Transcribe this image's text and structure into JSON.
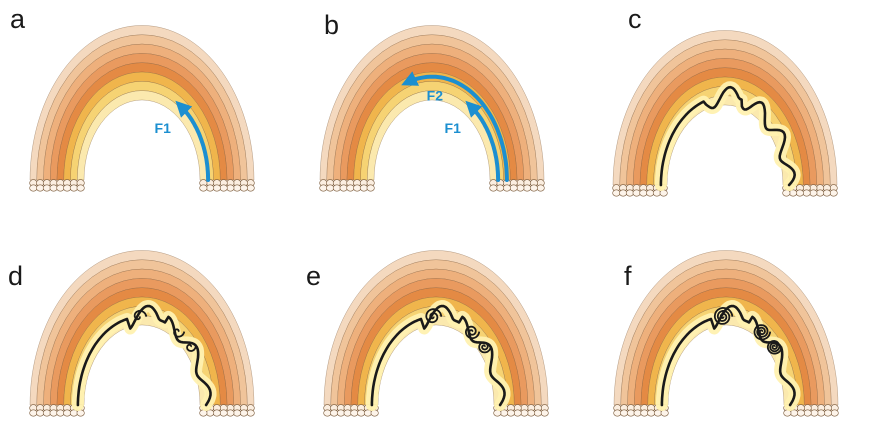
{
  "panels": [
    {
      "letter": "a",
      "fold": "none",
      "arrows": [
        "F1"
      ]
    },
    {
      "letter": "b",
      "fold": "none",
      "arrows": [
        "F1",
        "F2"
      ]
    },
    {
      "letter": "c",
      "fold": "wavy"
    },
    {
      "letter": "d",
      "fold": "curled"
    },
    {
      "letter": "e",
      "fold": "spiral"
    },
    {
      "letter": "f",
      "fold": "spiral-tight"
    }
  ],
  "labels": {
    "f1": "F1",
    "f2": "F2"
  },
  "colors": {
    "arc_layers": [
      "#f4d9bf",
      "#f0c49a",
      "#eeb07c",
      "#e99a5f",
      "#e48a44",
      "#f0b54c",
      "#f6d373",
      "#fbe9ae"
    ],
    "inner_fill": "#fff8d6",
    "fold_line": "#1a1a1a",
    "arrow": "#1c8fd0",
    "outline": "#7a5a3a"
  }
}
